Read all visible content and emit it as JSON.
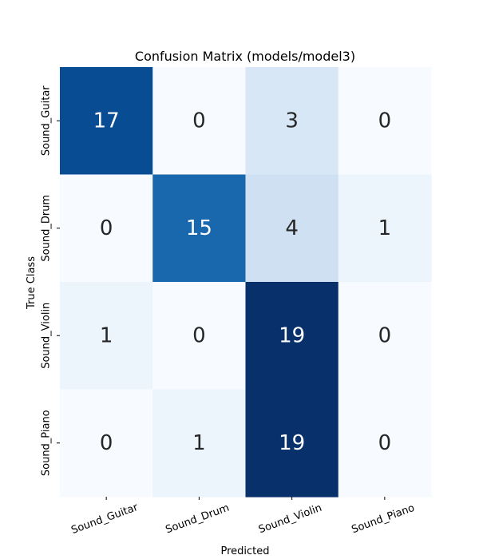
{
  "chart_data": {
    "type": "heatmap",
    "title": "Confusion Matrix (models/model3)",
    "xlabel": "Predicted",
    "ylabel": "True Class",
    "x_categories": [
      "Sound_Guitar",
      "Sound_Drum",
      "Sound_Violin",
      "Sound_Piano"
    ],
    "y_categories": [
      "Sound_Guitar",
      "Sound_Drum",
      "Sound_Violin",
      "Sound_Piano"
    ],
    "values": [
      [
        17,
        0,
        3,
        0
      ],
      [
        0,
        15,
        4,
        1
      ],
      [
        1,
        0,
        19,
        0
      ],
      [
        0,
        1,
        19,
        0
      ]
    ],
    "colormap": "Blues",
    "vmin": 0,
    "vmax": 19,
    "colorbar": false,
    "x_tick_rotation_deg": 20,
    "y_tick_rotation_deg": 90
  }
}
